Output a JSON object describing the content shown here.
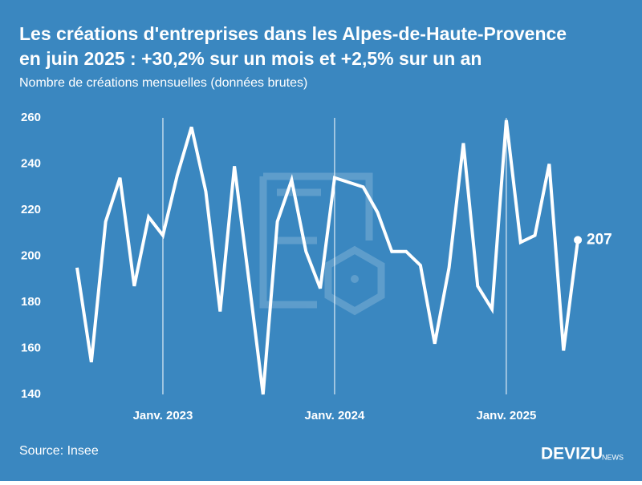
{
  "chart_data": {
    "type": "line",
    "title": [
      "Les créations d'entreprises dans les Alpes-de-Haute-Provence",
      "en juin 2025 : +30,2% sur un mois et +2,5% sur un an"
    ],
    "subtitle": "Nombre de créations mensuelles (données brutes)",
    "source": "Source: Insee",
    "brand": "DEVIZU",
    "brand_suffix": "NEWS",
    "categories": [
      null,
      null,
      null,
      null,
      null,
      null,
      "Janv. 2023",
      null,
      null,
      null,
      null,
      null,
      null,
      null,
      null,
      null,
      null,
      null,
      "Janv. 2024",
      null,
      null,
      null,
      null,
      null,
      null,
      null,
      null,
      null,
      null,
      null,
      "Janv. 2025",
      null,
      null,
      null,
      null,
      null
    ],
    "series": [
      {
        "name": "Créations",
        "color": "#ffffff",
        "values": [
          195,
          154,
          215,
          234,
          187,
          217,
          209,
          235,
          256,
          228,
          176,
          239,
          190,
          140,
          215,
          233,
          202,
          186,
          234,
          232,
          230,
          219,
          202,
          202,
          196,
          162,
          195,
          249,
          187,
          177,
          259,
          206,
          209,
          240,
          159,
          207
        ]
      }
    ],
    "ylim": [
      140,
      260
    ],
    "yticks": [
      140,
      160,
      180,
      200,
      220,
      240,
      260
    ],
    "background": "#3a87c0"
  }
}
